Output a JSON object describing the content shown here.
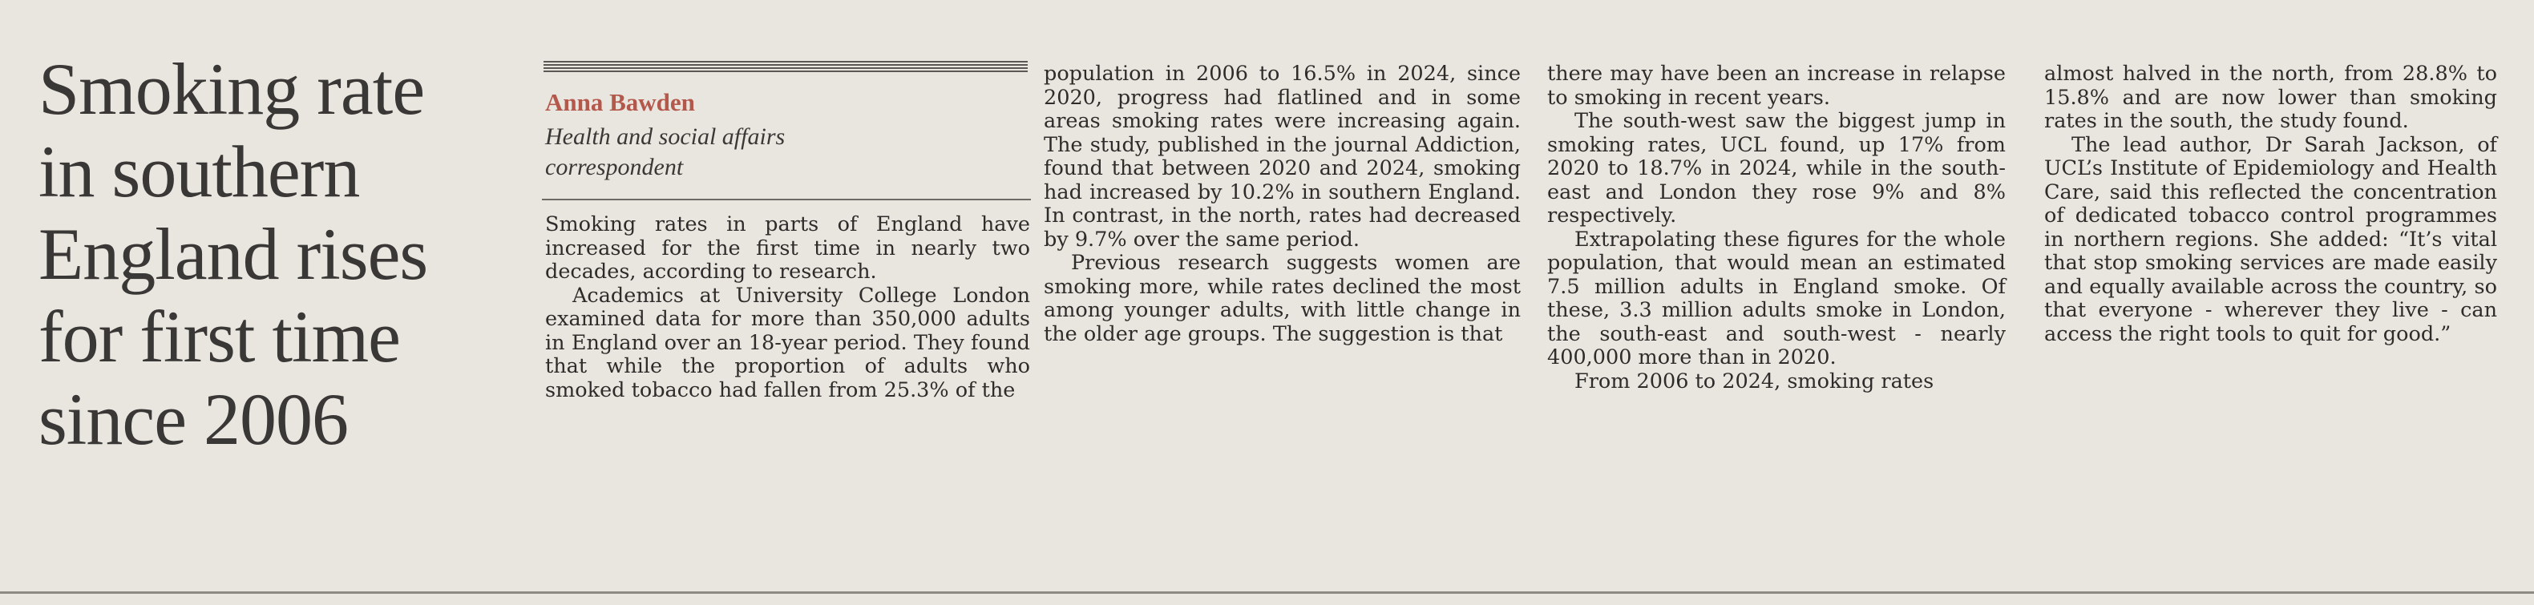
{
  "article": {
    "headline": [
      "Smoking rate",
      "in southern",
      "England rises",
      "for first time",
      "since 2006"
    ],
    "byline": {
      "name": "Anna Bawden",
      "role": "Health and social affairs correspondent"
    },
    "columns": [
      [
        "Smoking rates in parts of England have increased for the first time in nearly two decades, according to research.",
        "Academics at University College London examined data for more than 350,000 adults in England over an 18-year period. They found that while the proportion of adults who smoked tobacco had fallen from 25.3% of the"
      ],
      [
        "population in 2006 to 16.5% in 2024, since 2020, progress had flatlined and in some areas smoking rates were increasing again. The study, published in the journal Addiction, found that between 2020 and 2024, smoking had increased by 10.2% in southern England. In contrast, in the north, rates had decreased by 9.7% over the same period.",
        "Previous research suggests women are smoking more, while rates declined the most among younger adults, with little change in the older age groups. The suggestion is that"
      ],
      [
        "there may have been an increase in relapse to smoking in recent years.",
        "The south-west saw the biggest jump in smoking rates, UCL found, up 17% from 2020 to 18.7% in 2024, while in the south-east and London they rose 9% and 8% respectively.",
        "Extrapolating these figures for the whole population, that would mean an estimated 7.5 million adults in England smoke. Of these, 3.3 million adults smoke in London, the south-east and south-west - nearly 400,000 more than in 2020.",
        "From 2006 to 2024, smoking rates"
      ],
      [
        "almost halved in the north, from 28.8% to 15.8% and are now lower than smoking rates in the south, the study found.",
        "The lead author, Dr Sarah Jackson, of UCL’s Institute of Epidemiology and Health Care, said this reflected the concentration of dedicated tobacco control programmes in northern regions. She added: “It’s vital that stop smoking services are made easily and equally available across the country, so that everyone - wherever they live - can access the right tools to quit for good.”"
      ]
    ]
  }
}
